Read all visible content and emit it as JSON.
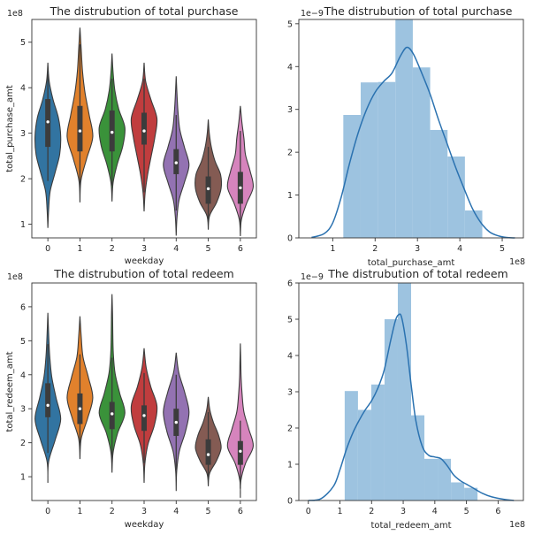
{
  "chart_data": [
    {
      "type": "violin",
      "title": "The distrubution of total purchase",
      "xlabel": "weekday",
      "ylabel": "total_purchase_amt",
      "y_offset_label": "1e8",
      "categories": [
        "0",
        "1",
        "2",
        "3",
        "4",
        "5",
        "6"
      ],
      "ylim": [
        0.7,
        5.5
      ],
      "yticks": [
        1,
        2,
        3,
        4,
        5
      ],
      "colors": [
        "#3274a1",
        "#e1812c",
        "#3a923a",
        "#c03d3e",
        "#9372b2",
        "#845b53",
        "#d684bd"
      ],
      "violins": [
        {
          "min": 0.92,
          "max": 4.55,
          "q1": 2.7,
          "median": 3.25,
          "q3": 3.75,
          "whisker_low": 1.95,
          "whisker_high": 4.3,
          "widths": [
            0.03,
            0.09,
            0.28,
            0.46,
            0.5,
            0.41,
            0.2,
            0.05
          ]
        },
        {
          "min": 1.48,
          "max": 5.32,
          "q1": 2.6,
          "median": 3.05,
          "q3": 3.6,
          "whisker_low": 1.85,
          "whisker_high": 4.95,
          "widths": [
            0.04,
            0.26,
            0.5,
            0.36,
            0.2,
            0.1,
            0.05
          ]
        },
        {
          "min": 1.5,
          "max": 4.75,
          "q1": 2.6,
          "median": 3.02,
          "q3": 3.5,
          "whisker_low": 1.85,
          "whisker_high": 4.2,
          "widths": [
            0.04,
            0.2,
            0.42,
            0.5,
            0.26,
            0.11,
            0.04
          ]
        },
        {
          "min": 1.28,
          "max": 4.55,
          "q1": 2.75,
          "median": 3.05,
          "q3": 3.45,
          "whisker_low": 1.7,
          "whisker_high": 4.2,
          "widths": [
            0.04,
            0.14,
            0.28,
            0.42,
            0.5,
            0.27,
            0.06
          ]
        },
        {
          "min": 0.75,
          "max": 4.25,
          "q1": 2.1,
          "median": 2.35,
          "q3": 2.65,
          "whisker_low": 1.3,
          "whisker_high": 3.4,
          "widths": [
            0.03,
            0.11,
            0.32,
            0.5,
            0.32,
            0.14,
            0.07,
            0.03
          ]
        },
        {
          "min": 0.88,
          "max": 3.3,
          "q1": 1.45,
          "median": 1.78,
          "q3": 2.05,
          "whisker_low": 1.05,
          "whisker_high": 2.7,
          "widths": [
            0.05,
            0.33,
            0.5,
            0.48,
            0.26,
            0.12,
            0.04
          ]
        },
        {
          "min": 0.74,
          "max": 3.6,
          "q1": 1.45,
          "median": 1.8,
          "q3": 2.15,
          "whisker_low": 0.95,
          "whisker_high": 3.05,
          "widths": [
            0.04,
            0.24,
            0.5,
            0.38,
            0.2,
            0.14,
            0.06
          ]
        }
      ]
    },
    {
      "type": "histogram",
      "title": "The distrubution of total purchase",
      "xlabel": "total_purchase_amt",
      "x_offset_label": "1e8",
      "y_offset_label": "1e−9",
      "xlim": [
        0.2,
        5.5
      ],
      "ylim": [
        0,
        5.1
      ],
      "xticks": [
        1,
        2,
        3,
        4,
        5
      ],
      "yticks": [
        0,
        1,
        2,
        3,
        4,
        5
      ],
      "bar_color": "#9dc3e0",
      "line_color": "#2b72b0",
      "bins": [
        {
          "x0": 1.25,
          "x1": 1.66,
          "y": 2.87
        },
        {
          "x0": 1.66,
          "x1": 2.07,
          "y": 3.63
        },
        {
          "x0": 2.07,
          "x1": 2.48,
          "y": 3.64
        },
        {
          "x0": 2.48,
          "x1": 2.89,
          "y": 5.1
        },
        {
          "x0": 2.89,
          "x1": 3.3,
          "y": 3.98
        },
        {
          "x0": 3.3,
          "x1": 3.71,
          "y": 2.52
        },
        {
          "x0": 3.71,
          "x1": 4.12,
          "y": 1.9
        },
        {
          "x0": 4.12,
          "x1": 4.53,
          "y": 0.64
        }
      ],
      "kde": {
        "x": [
          0.5,
          0.8,
          1.0,
          1.2,
          1.4,
          1.6,
          1.8,
          2.0,
          2.2,
          2.4,
          2.6,
          2.75,
          2.9,
          3.1,
          3.3,
          3.5,
          3.7,
          3.9,
          4.1,
          4.3,
          4.5,
          4.7,
          4.9,
          5.1,
          5.3
        ],
        "y": [
          0.01,
          0.1,
          0.35,
          0.95,
          1.75,
          2.45,
          3.0,
          3.4,
          3.65,
          3.85,
          4.25,
          4.45,
          4.3,
          3.85,
          3.35,
          2.75,
          2.2,
          1.65,
          1.15,
          0.68,
          0.35,
          0.14,
          0.05,
          0.01,
          0.0
        ]
      }
    },
    {
      "type": "violin",
      "title": "The distrubution of total redeem",
      "xlabel": "weekday",
      "ylabel": "total_redeem_amt",
      "y_offset_label": "1e8",
      "categories": [
        "0",
        "1",
        "2",
        "3",
        "4",
        "5",
        "6"
      ],
      "ylim": [
        0.3,
        6.7
      ],
      "yticks": [
        1,
        2,
        3,
        4,
        5,
        6
      ],
      "colors": [
        "#3274a1",
        "#e1812c",
        "#3a923a",
        "#c03d3e",
        "#9372b2",
        "#845b53",
        "#d684bd"
      ],
      "violins": [
        {
          "min": 0.82,
          "max": 5.82,
          "q1": 2.75,
          "median": 3.1,
          "q3": 3.75,
          "whisker_low": 1.7,
          "whisker_high": 4.9,
          "widths": [
            0.03,
            0.28,
            0.5,
            0.32,
            0.15,
            0.07,
            0.03
          ]
        },
        {
          "min": 1.52,
          "max": 5.72,
          "q1": 2.55,
          "median": 3.0,
          "q3": 3.45,
          "whisker_low": 1.9,
          "whisker_high": 4.6,
          "widths": [
            0.05,
            0.3,
            0.5,
            0.33,
            0.12,
            0.05
          ]
        },
        {
          "min": 1.12,
          "max": 6.37,
          "q1": 2.4,
          "median": 2.85,
          "q3": 3.2,
          "whisker_low": 1.45,
          "whisker_high": 4.5,
          "widths": [
            0.04,
            0.22,
            0.5,
            0.3,
            0.12,
            0.05,
            0.03,
            0.02
          ]
        },
        {
          "min": 0.82,
          "max": 4.78,
          "q1": 2.35,
          "median": 2.8,
          "q3": 3.1,
          "whisker_low": 1.4,
          "whisker_high": 4.05,
          "widths": [
            0.03,
            0.15,
            0.4,
            0.5,
            0.26,
            0.08
          ]
        },
        {
          "min": 0.58,
          "max": 4.65,
          "q1": 2.2,
          "median": 2.6,
          "q3": 3.0,
          "whisker_low": 1.2,
          "whisker_high": 4.0,
          "widths": [
            0.02,
            0.12,
            0.36,
            0.5,
            0.33,
            0.1
          ]
        },
        {
          "min": 0.72,
          "max": 3.35,
          "q1": 1.35,
          "median": 1.65,
          "q3": 2.1,
          "whisker_low": 0.95,
          "whisker_high": 2.9,
          "widths": [
            0.05,
            0.32,
            0.5,
            0.4,
            0.2,
            0.06
          ]
        },
        {
          "min": 0.38,
          "max": 4.92,
          "q1": 1.35,
          "median": 1.75,
          "q3": 2.05,
          "whisker_low": 0.65,
          "whisker_high": 2.65,
          "widths": [
            0.02,
            0.2,
            0.5,
            0.33,
            0.14,
            0.07,
            0.03,
            0.015
          ]
        }
      ]
    },
    {
      "type": "histogram",
      "title": "The distrubution of total redeem",
      "xlabel": "total_redeem_amt",
      "x_offset_label": "1e8",
      "y_offset_label": "1e−9",
      "xlim": [
        -0.3,
        6.8
      ],
      "ylim": [
        0,
        6.0
      ],
      "xticks": [
        0,
        1,
        2,
        3,
        4,
        5,
        6
      ],
      "yticks": [
        0,
        1,
        2,
        3,
        4,
        5,
        6
      ],
      "bar_color": "#9dc3e0",
      "line_color": "#2b72b0",
      "bins": [
        {
          "x0": 1.15,
          "x1": 1.57,
          "y": 3.02
        },
        {
          "x0": 1.57,
          "x1": 1.99,
          "y": 2.5
        },
        {
          "x0": 1.99,
          "x1": 2.41,
          "y": 3.2
        },
        {
          "x0": 2.41,
          "x1": 2.83,
          "y": 5.0
        },
        {
          "x0": 2.83,
          "x1": 3.25,
          "y": 6.0
        },
        {
          "x0": 3.25,
          "x1": 3.67,
          "y": 2.35
        },
        {
          "x0": 3.67,
          "x1": 4.09,
          "y": 1.15
        },
        {
          "x0": 4.09,
          "x1": 4.51,
          "y": 1.15
        },
        {
          "x0": 4.51,
          "x1": 4.93,
          "y": 0.5
        },
        {
          "x0": 4.93,
          "x1": 5.35,
          "y": 0.35
        }
      ],
      "kde": {
        "x": [
          0.0,
          0.4,
          0.8,
          1.0,
          1.2,
          1.4,
          1.6,
          1.8,
          2.0,
          2.2,
          2.4,
          2.6,
          2.75,
          2.85,
          2.95,
          3.1,
          3.25,
          3.4,
          3.6,
          3.8,
          4.0,
          4.2,
          4.4,
          4.6,
          4.8,
          5.0,
          5.2,
          5.5,
          5.8,
          6.2,
          6.5
        ],
        "y": [
          0.0,
          0.05,
          0.4,
          0.85,
          1.4,
          1.85,
          2.2,
          2.5,
          2.75,
          3.1,
          3.6,
          4.4,
          4.95,
          5.12,
          5.05,
          4.3,
          3.2,
          2.2,
          1.5,
          1.25,
          1.2,
          1.15,
          0.95,
          0.7,
          0.55,
          0.45,
          0.35,
          0.2,
          0.1,
          0.03,
          0.0
        ]
      }
    }
  ]
}
